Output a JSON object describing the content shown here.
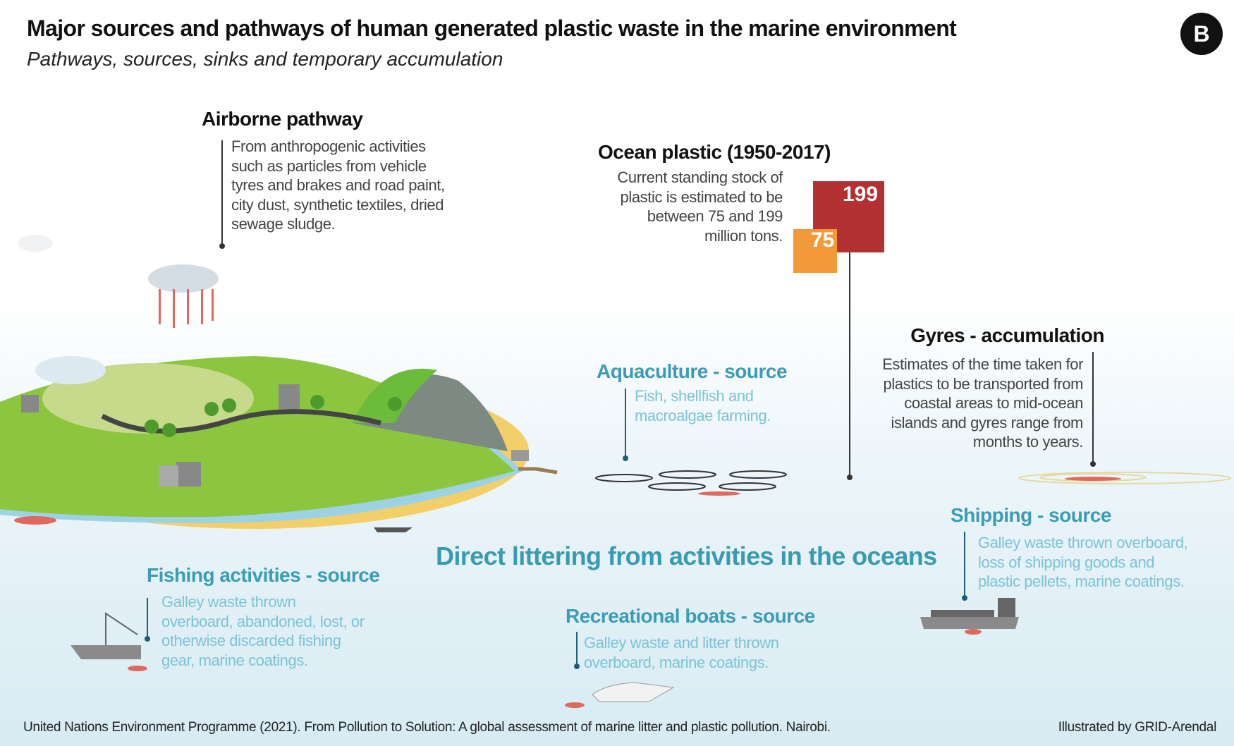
{
  "header": {
    "title": "Major sources and pathways of human generated plastic waste in the marine environment",
    "subtitle": "Pathways, sources, sinks and temporary accumulation",
    "badge": "B"
  },
  "airborne": {
    "title": "Airborne pathway",
    "text": "From anthropogenic activities\nsuch as particles from vehicle\ntyres and brakes and road paint,\ncity dust, synthetic textiles, dried\nsewage sludge."
  },
  "ocean_plastic": {
    "title": "Ocean plastic (1950-2017)",
    "text": "Current standing stock of\nplastic is estimated to be\nbetween 75 and 199\nmillion tons.",
    "low": 75,
    "high": 199
  },
  "gyres": {
    "title": "Gyres - accumulation",
    "text": "Estimates of the time taken for\nplastics to be transported from\ncoastal areas to mid-ocean\nislands and gyres range from\nmonths to years."
  },
  "aquaculture": {
    "title": "Aquaculture - source",
    "text": "Fish, shellfish and\nmacroalgae farming."
  },
  "direct": {
    "title": "Direct littering from activities in the oceans"
  },
  "fishing": {
    "title": "Fishing activities - source",
    "text": "Galley waste thrown\noverboard, abandoned, lost, or\notherwise discarded fishing\ngear, marine coatings."
  },
  "recreational": {
    "title": "Recreational boats - source",
    "text": "Galley waste and litter thrown\noverboard, marine coatings."
  },
  "shipping": {
    "title": "Shipping - source",
    "text": "Galley waste thrown overboard,\nloss of shipping goods and\nplastic pellets, marine coatings."
  },
  "footer": {
    "citation": "United Nations Environment Programme (2021). From Pollution to Solution: A global assessment of marine litter and plastic pollution. Nairobi.",
    "credit": "Illustrated by GRID-Arendal"
  }
}
